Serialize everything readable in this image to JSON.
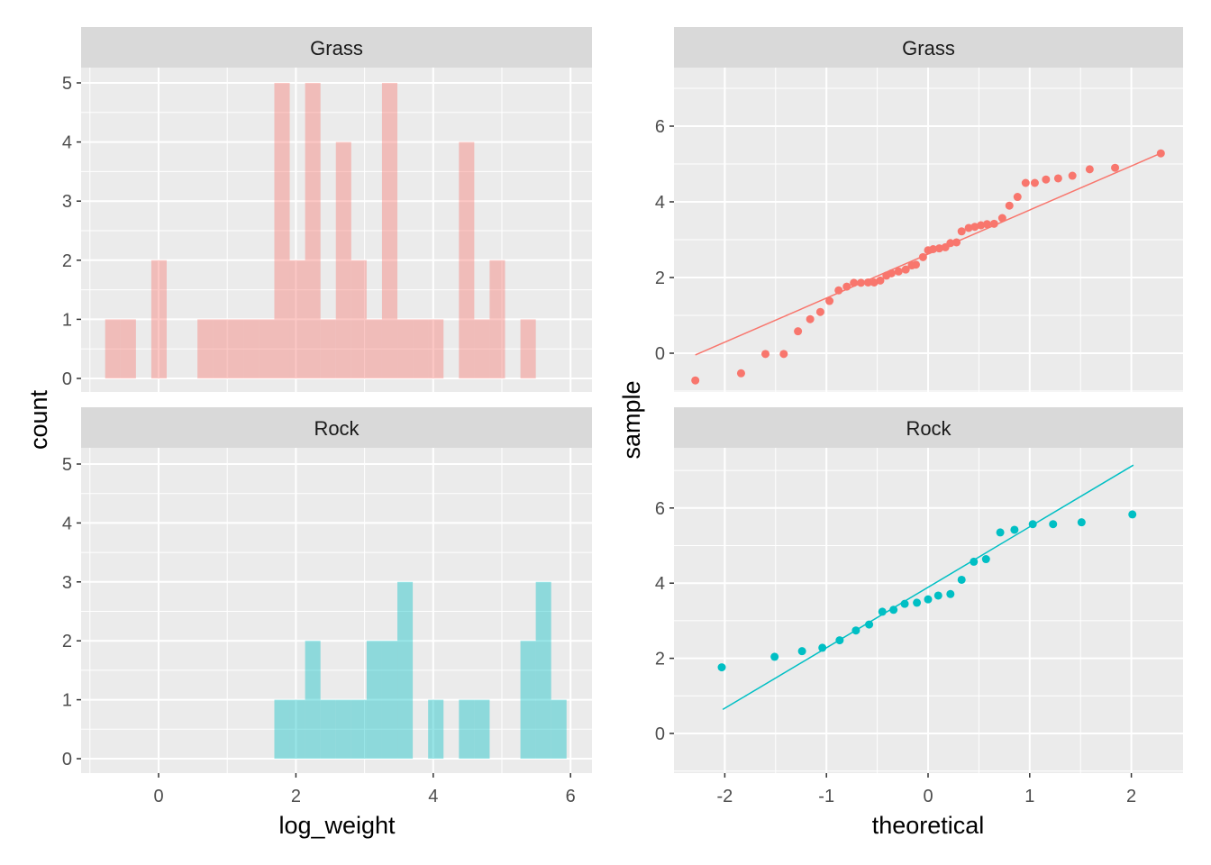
{
  "axis_titles": {
    "hist_x": "log_weight",
    "hist_y": "count",
    "qq_x": "theoretical",
    "qq_y": "sample"
  },
  "colors": {
    "grass": "#F8766D",
    "rock": "#00BFC4",
    "panel_bg": "#EBEBEB",
    "strip_bg": "#D9D9D9",
    "grid": "#FFFFFF"
  },
  "chart_data": [
    {
      "type": "bar",
      "subtype": "histogram",
      "facet": "Grass",
      "xlabel": "log_weight",
      "ylabel": "count",
      "bin_start": -0.778,
      "bin_width": 0.224,
      "counts": [
        1,
        1,
        0,
        2,
        0,
        0,
        1,
        1,
        1,
        1,
        1,
        5,
        2,
        5,
        1,
        4,
        2,
        1,
        5,
        1,
        1,
        1,
        0,
        4,
        1,
        2,
        0,
        1,
        0,
        0
      ],
      "xlim": [
        -1.1,
        6.3
      ],
      "ylim": [
        0,
        5
      ],
      "xticks": [
        "0",
        "2",
        "4",
        "6"
      ],
      "yticks": [
        "0",
        "1",
        "2",
        "3",
        "4",
        "5"
      ],
      "fill_alpha": 0.4,
      "color": "#F8766D"
    },
    {
      "type": "bar",
      "subtype": "histogram",
      "facet": "Rock",
      "xlabel": "log_weight",
      "ylabel": "count",
      "bin_start": -0.778,
      "bin_width": 0.224,
      "counts": [
        0,
        0,
        0,
        0,
        0,
        0,
        0,
        0,
        0,
        0,
        0,
        1,
        1,
        2,
        1,
        1,
        1,
        2,
        2,
        3,
        0,
        1,
        0,
        1,
        1,
        0,
        0,
        2,
        3,
        1
      ],
      "xlim": [
        -1.1,
        6.3
      ],
      "ylim": [
        0,
        5
      ],
      "xticks": [
        "0",
        "2",
        "4",
        "6"
      ],
      "yticks": [
        "0",
        "1",
        "2",
        "3",
        "4",
        "5"
      ],
      "fill_alpha": 0.4,
      "color": "#00BFC4"
    },
    {
      "type": "scatter",
      "subtype": "qq",
      "facet": "Grass",
      "xlabel": "theoretical",
      "ylabel": "sample",
      "points": [
        [
          -2.29,
          -0.72
        ],
        [
          -1.84,
          -0.53
        ],
        [
          -1.6,
          -0.02
        ],
        [
          -1.42,
          -0.02
        ],
        [
          -1.28,
          0.58
        ],
        [
          -1.16,
          0.9
        ],
        [
          -1.06,
          1.09
        ],
        [
          -0.97,
          1.38
        ],
        [
          -0.88,
          1.66
        ],
        [
          -0.8,
          1.76
        ],
        [
          -0.73,
          1.86
        ],
        [
          -0.66,
          1.86
        ],
        [
          -0.59,
          1.87
        ],
        [
          -0.53,
          1.87
        ],
        [
          -0.47,
          1.92
        ],
        [
          -0.41,
          2.05
        ],
        [
          -0.36,
          2.11
        ],
        [
          -0.29,
          2.16
        ],
        [
          -0.22,
          2.21
        ],
        [
          -0.16,
          2.32
        ],
        [
          -0.12,
          2.34
        ],
        [
          -0.05,
          2.54
        ],
        [
          0.0,
          2.72
        ],
        [
          0.05,
          2.75
        ],
        [
          0.11,
          2.77
        ],
        [
          0.17,
          2.8
        ],
        [
          0.22,
          2.91
        ],
        [
          0.28,
          2.93
        ],
        [
          0.33,
          3.22
        ],
        [
          0.4,
          3.31
        ],
        [
          0.46,
          3.34
        ],
        [
          0.52,
          3.38
        ],
        [
          0.58,
          3.41
        ],
        [
          0.65,
          3.42
        ],
        [
          0.73,
          3.57
        ],
        [
          0.8,
          3.9
        ],
        [
          0.88,
          4.13
        ],
        [
          0.96,
          4.5
        ],
        [
          1.05,
          4.5
        ],
        [
          1.16,
          4.59
        ],
        [
          1.28,
          4.62
        ],
        [
          1.42,
          4.69
        ],
        [
          1.59,
          4.86
        ],
        [
          1.84,
          4.9
        ],
        [
          2.29,
          5.28
        ]
      ],
      "qq_line": {
        "intercept": 2.62,
        "slope": 1.164,
        "x_range": [
          -2.29,
          2.29
        ]
      },
      "xlim": [
        -2.5,
        2.5
      ],
      "ylim": [
        -1,
        7.6
      ],
      "xticks": [
        "-2",
        "-1",
        "0",
        "1",
        "2"
      ],
      "yticks": [
        "0",
        "2",
        "4",
        "6"
      ],
      "color": "#F8766D"
    },
    {
      "type": "scatter",
      "subtype": "qq",
      "facet": "Rock",
      "xlabel": "theoretical",
      "ylabel": "sample",
      "points": [
        [
          -2.03,
          1.76
        ],
        [
          -1.51,
          2.04
        ],
        [
          -1.24,
          2.19
        ],
        [
          -1.04,
          2.28
        ],
        [
          -0.87,
          2.48
        ],
        [
          -0.71,
          2.74
        ],
        [
          -0.58,
          2.9
        ],
        [
          -0.45,
          3.24
        ],
        [
          -0.34,
          3.29
        ],
        [
          -0.23,
          3.45
        ],
        [
          -0.11,
          3.48
        ],
        [
          0.0,
          3.57
        ],
        [
          0.1,
          3.67
        ],
        [
          0.22,
          3.71
        ],
        [
          0.33,
          4.09
        ],
        [
          0.45,
          4.57
        ],
        [
          0.57,
          4.64
        ],
        [
          0.71,
          5.35
        ],
        [
          0.85,
          5.42
        ],
        [
          1.03,
          5.57
        ],
        [
          1.23,
          5.57
        ],
        [
          1.51,
          5.62
        ],
        [
          2.01,
          5.83
        ]
      ],
      "qq_line": {
        "intercept": 3.89,
        "slope": 1.61,
        "x_range": [
          -2.02,
          2.02
        ]
      },
      "xlim": [
        -2.5,
        2.5
      ],
      "ylim": [
        -1,
        7.6
      ],
      "xticks": [
        "-2",
        "-1",
        "0",
        "1",
        "2"
      ],
      "yticks": [
        "0",
        "2",
        "4",
        "6"
      ],
      "color": "#00BFC4"
    }
  ]
}
